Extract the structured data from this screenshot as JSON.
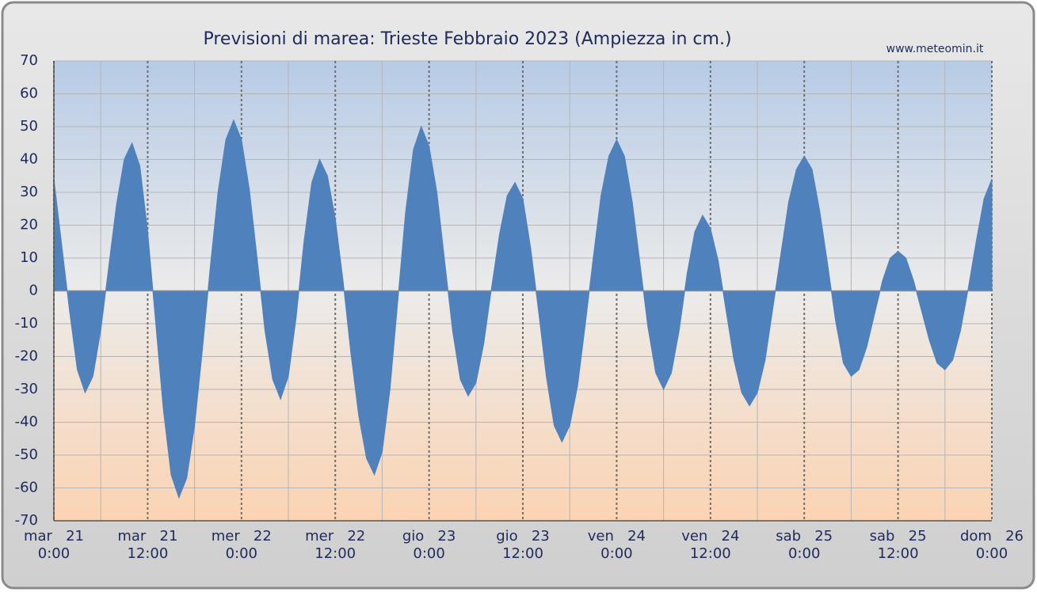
{
  "chart_data": {
    "type": "area",
    "title": "Previsioni di marea: Trieste Febbraio 2023 (Ampiezza in cm.)",
    "source": "www.meteomin.it",
    "x": [
      0,
      1,
      2,
      3,
      4,
      5,
      6,
      7,
      8,
      9,
      10,
      11,
      12,
      13,
      14,
      15,
      16,
      17,
      18,
      19,
      20,
      21,
      22,
      23,
      24,
      25,
      26,
      27,
      28,
      29,
      30,
      31,
      32,
      33,
      34,
      35,
      36,
      37,
      38,
      39,
      40,
      41,
      42,
      43,
      44,
      45,
      46,
      47,
      48,
      49,
      50,
      51,
      52,
      53,
      54,
      55,
      56,
      57,
      58,
      59,
      60,
      61,
      62,
      63,
      64,
      65,
      66,
      67,
      68,
      69,
      70,
      71,
      72,
      73,
      74,
      75,
      76,
      77,
      78,
      79,
      80,
      81,
      82,
      83,
      84,
      85,
      86,
      87,
      88,
      89,
      90,
      91,
      92,
      93,
      94,
      95,
      96,
      97,
      98,
      99,
      100,
      101,
      102,
      103,
      104,
      105,
      106,
      107,
      108,
      109,
      110,
      111,
      112,
      113,
      114,
      115,
      116,
      117,
      118,
      119,
      120
    ],
    "series": [
      {
        "color": "#4f81bd",
        "values": [
          34,
          14,
          -6,
          -24,
          -31,
          -26,
          -12,
          7,
          26,
          40,
          45,
          38,
          18,
          -9,
          -36,
          -56,
          -63,
          -57,
          -41,
          -18,
          7,
          30,
          46,
          52,
          46,
          31,
          10,
          -12,
          -27,
          -33,
          -26,
          -8,
          15,
          33,
          40,
          35,
          22,
          3,
          -19,
          -38,
          -51,
          -56,
          -49,
          -30,
          -3,
          24,
          43,
          50,
          44,
          30,
          9,
          -12,
          -27,
          -32,
          -28,
          -16,
          1,
          17,
          29,
          33,
          28,
          13,
          -6,
          -26,
          -41,
          -46,
          -41,
          -29,
          -10,
          10,
          29,
          41,
          46,
          41,
          27,
          8,
          -11,
          -25,
          -30,
          -25,
          -12,
          5,
          18,
          23,
          19,
          9,
          -6,
          -21,
          -31,
          -35,
          -31,
          -21,
          -5,
          11,
          27,
          37,
          41,
          37,
          24,
          8,
          -9,
          -22,
          -26,
          -24,
          -17,
          -7,
          3,
          10,
          12,
          10,
          3,
          -6,
          -15,
          -22,
          -24,
          -21,
          -12,
          1,
          15,
          28,
          34
        ]
      }
    ],
    "xlim": [
      0,
      120
    ],
    "xticks": [
      {
        "value": 0,
        "label": "mar   21\n0:00"
      },
      {
        "value": 12,
        "label": "mar   21\n12:00"
      },
      {
        "value": 24,
        "label": "mer   22\n0:00"
      },
      {
        "value": 36,
        "label": "mer   22\n12:00"
      },
      {
        "value": 48,
        "label": "gio   23\n0:00"
      },
      {
        "value": 60,
        "label": "gio   23\n12:00"
      },
      {
        "value": 72,
        "label": "ven   24\n0:00"
      },
      {
        "value": 84,
        "label": "ven   24\n12:00"
      },
      {
        "value": 96,
        "label": "sab   25\n0:00"
      },
      {
        "value": 108,
        "label": "sab   25\n12:00"
      },
      {
        "value": 120,
        "label": "dom   26\n0:00"
      }
    ],
    "xminorticks": [
      6,
      18,
      30,
      42,
      54,
      66,
      78,
      90,
      102,
      114
    ],
    "ylim": [
      -70,
      70
    ],
    "yticks": [
      -70,
      -60,
      -50,
      -40,
      -30,
      -20,
      -10,
      0,
      10,
      20,
      30,
      40,
      50,
      60,
      70
    ],
    "grid": true
  }
}
